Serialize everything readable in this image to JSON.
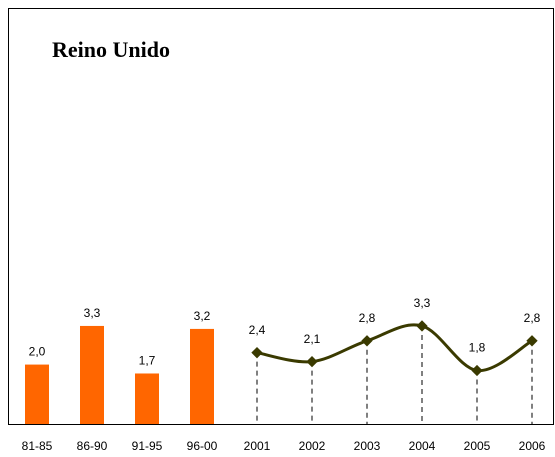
{
  "chart_data": {
    "type": "bar",
    "title": "Reino Unido",
    "categories": [
      "81-85",
      "86-90",
      "91-95",
      "96-00",
      "2001",
      "2002",
      "2003",
      "2004",
      "2005",
      "2006"
    ],
    "series": [
      {
        "type": "bar",
        "color": "#ff6600",
        "values": [
          2.0,
          3.3,
          1.7,
          3.2,
          null,
          null,
          null,
          null,
          null,
          null
        ],
        "value_labels": [
          "2,0",
          "3,3",
          "1,7",
          "3,2",
          null,
          null,
          null,
          null,
          null,
          null
        ]
      },
      {
        "type": "line",
        "color": "#3a3a00",
        "values": [
          null,
          null,
          null,
          null,
          2.4,
          2.1,
          2.8,
          3.3,
          1.8,
          2.8
        ],
        "value_labels": [
          null,
          null,
          null,
          null,
          "2,4",
          "2,1",
          "2,8",
          "3,3",
          "1,8",
          "2,8"
        ]
      }
    ],
    "ylim": [
      0,
      14
    ]
  }
}
